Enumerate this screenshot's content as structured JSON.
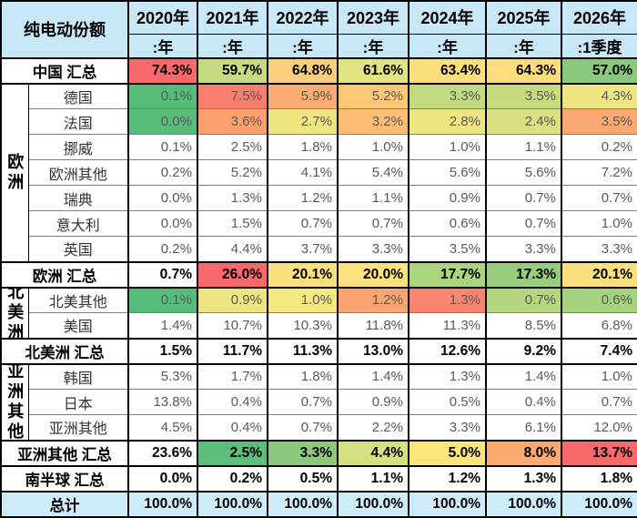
{
  "table": {
    "corner_label": "纯电动份额",
    "columns": [
      {
        "year": "2020年",
        "period": ":年"
      },
      {
        "year": "2021年",
        "period": ":年"
      },
      {
        "year": "2022年",
        "period": ":年"
      },
      {
        "year": "2023年",
        "period": ":年"
      },
      {
        "year": "2024年",
        "period": ":年"
      },
      {
        "year": "2025年",
        "period": ":年"
      },
      {
        "year": "2026年",
        "period": ":1季度"
      }
    ],
    "colors": {
      "header_bg": "#c9e8f7",
      "total_bg": "#cdebf8",
      "scale_red": "#f8696b",
      "scale_yellow": "#ffeb84",
      "scale_green": "#63be7b"
    },
    "rows": [
      {
        "kind": "summary",
        "label": "中国 汇总",
        "values": [
          "74.3%",
          "59.7%",
          "64.8%",
          "61.6%",
          "63.4%",
          "64.3%",
          "57.0%"
        ],
        "bg": [
          "#f8696b",
          "#c6db81",
          "#fbcf7d",
          "#e2e382",
          "#fbdf7d",
          "#fbdd7d",
          "#8ac87d"
        ]
      },
      {
        "kind": "country",
        "label": "德国",
        "group": {
          "name": "欧洲",
          "span": 7,
          "clip": "none"
        },
        "values": [
          "0.1%",
          "7.5%",
          "5.9%",
          "5.2%",
          "3.3%",
          "3.5%",
          "4.3%"
        ],
        "bg": [
          "#57bb79",
          "#f87e6e",
          "#faac71",
          "#fbc776",
          "#c3da80",
          "#c6db80",
          "#efe683"
        ]
      },
      {
        "kind": "country",
        "label": "法国",
        "values": [
          "0.0%",
          "3.6%",
          "2.7%",
          "3.2%",
          "2.8%",
          "2.4%",
          "3.5%"
        ],
        "bg": [
          "#57bb79",
          "#faa06f",
          "#efe682",
          "#fbbc74",
          "#ede582",
          "#d9e081",
          "#faa872"
        ]
      },
      {
        "kind": "country",
        "label": "挪威",
        "values": [
          "0.1%",
          "2.5%",
          "1.8%",
          "1.0%",
          "1.0%",
          "1.1%",
          "0.2%"
        ],
        "bg": [
          null,
          null,
          null,
          null,
          null,
          null,
          null
        ]
      },
      {
        "kind": "country",
        "label": "欧洲其他",
        "values": [
          "0.2%",
          "5.2%",
          "4.1%",
          "5.4%",
          "5.6%",
          "5.6%",
          "7.2%"
        ],
        "bg": [
          null,
          null,
          null,
          null,
          null,
          null,
          null
        ]
      },
      {
        "kind": "country",
        "label": "瑞典",
        "values": [
          "0.0%",
          "1.3%",
          "1.2%",
          "1.1%",
          "0.9%",
          "0.7%",
          "0.7%"
        ],
        "bg": [
          null,
          null,
          null,
          null,
          null,
          null,
          null
        ]
      },
      {
        "kind": "country",
        "label": "意大利",
        "values": [
          "0.0%",
          "1.5%",
          "0.7%",
          "0.7%",
          "0.6%",
          "0.7%",
          "1.0%"
        ],
        "bg": [
          null,
          null,
          null,
          null,
          null,
          null,
          null
        ]
      },
      {
        "kind": "country",
        "label": "英国",
        "values": [
          "0.2%",
          "4.4%",
          "3.7%",
          "3.3%",
          "3.5%",
          "3.3%",
          "3.3%"
        ],
        "bg": [
          null,
          null,
          null,
          null,
          null,
          null,
          null
        ]
      },
      {
        "kind": "summary",
        "label": "欧洲 汇总",
        "values": [
          "0.7%",
          "26.0%",
          "20.1%",
          "20.0%",
          "17.7%",
          "17.3%",
          "20.1%"
        ],
        "bg": [
          null,
          "#f8696b",
          "#fce07d",
          "#fce27e",
          "#abd47f",
          "#97cc7e",
          "#fbe07d"
        ]
      },
      {
        "kind": "country",
        "label": "北美其他",
        "group": {
          "name": "北美洲",
          "span": 2,
          "clip": "clip2"
        },
        "values": [
          "0.1%",
          "0.9%",
          "1.0%",
          "1.2%",
          "1.3%",
          "0.7%",
          "0.6%"
        ],
        "bg": [
          "#57bb79",
          "#ede582",
          "#f5e881",
          "#faa571",
          "#f98570",
          "#b4d67f",
          "#a5d27e"
        ]
      },
      {
        "kind": "country",
        "label": "美国",
        "values": [
          "1.4%",
          "10.7%",
          "10.3%",
          "11.8%",
          "11.3%",
          "8.5%",
          "6.8%"
        ],
        "bg": [
          null,
          null,
          null,
          null,
          null,
          null,
          null
        ]
      },
      {
        "kind": "summary",
        "label": "北美洲 汇总",
        "values": [
          "1.5%",
          "11.7%",
          "11.3%",
          "13.0%",
          "12.6%",
          "9.2%",
          "7.4%"
        ],
        "bg": [
          null,
          null,
          null,
          null,
          null,
          null,
          null
        ]
      },
      {
        "kind": "country",
        "label": "韩国",
        "group": {
          "name": "亚洲其他",
          "span": 3,
          "clip": "clip3"
        },
        "values": [
          "5.3%",
          "1.7%",
          "1.8%",
          "1.4%",
          "1.3%",
          "1.4%",
          "1.0%"
        ],
        "bg": [
          null,
          null,
          null,
          null,
          null,
          null,
          null
        ]
      },
      {
        "kind": "country",
        "label": "日本",
        "values": [
          "13.8%",
          "0.4%",
          "0.7%",
          "0.9%",
          "0.5%",
          "0.4%",
          "0.7%"
        ],
        "bg": [
          null,
          null,
          null,
          null,
          null,
          null,
          null
        ]
      },
      {
        "kind": "country",
        "label": "亚洲其他",
        "values": [
          "4.5%",
          "0.4%",
          "0.7%",
          "2.2%",
          "3.3%",
          "6.1%",
          "12.0%"
        ],
        "bg": [
          null,
          null,
          null,
          null,
          null,
          null,
          null
        ]
      },
      {
        "kind": "summary",
        "label": "亚洲其他 汇总",
        "values": [
          "23.6%",
          "2.5%",
          "3.3%",
          "4.4%",
          "5.0%",
          "8.0%",
          "13.7%"
        ],
        "bg": [
          null,
          "#5dbd7a",
          "#8cc97d",
          "#d7e081",
          "#fbe57d",
          "#faa971",
          "#f8696b"
        ]
      },
      {
        "kind": "summary",
        "label": "南半球 汇总",
        "values": [
          "0.0%",
          "0.2%",
          "0.5%",
          "1.1%",
          "1.2%",
          "1.3%",
          "1.8%"
        ],
        "bg": [
          null,
          null,
          null,
          null,
          null,
          null,
          null
        ]
      },
      {
        "kind": "total",
        "label": "总计",
        "values": [
          "100.0%",
          "100.0%",
          "100.0%",
          "100.0%",
          "100.0%",
          "100.0%",
          "100.0%"
        ],
        "bg": [
          null,
          null,
          null,
          null,
          null,
          null,
          null
        ]
      }
    ]
  }
}
